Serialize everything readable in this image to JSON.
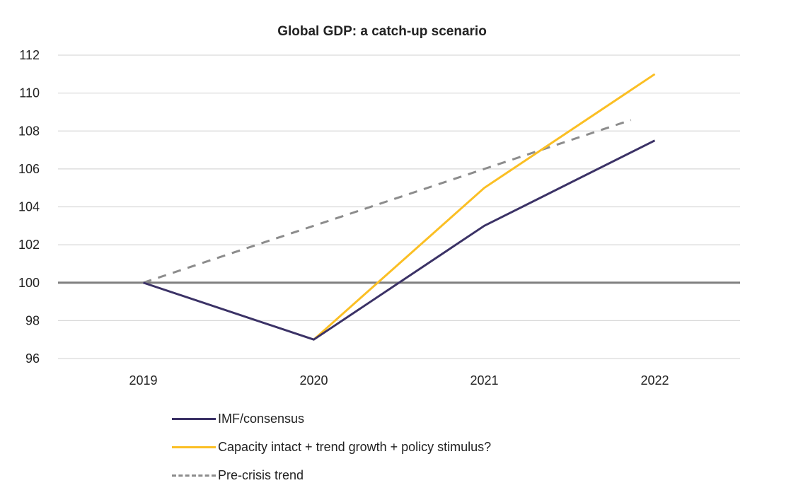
{
  "chart_data": {
    "type": "line",
    "title": "Global GDP: a catch-up scenario",
    "xlabel": "",
    "ylabel": "",
    "categories": [
      "2019",
      "2020",
      "2021",
      "2022"
    ],
    "ylim": [
      96,
      112
    ],
    "yticks": [
      96,
      98,
      100,
      102,
      104,
      106,
      108,
      110,
      112
    ],
    "ytick_labels": [
      "96",
      "98",
      "100",
      "102",
      "104",
      "106",
      "108",
      "110",
      "112"
    ],
    "grid": true,
    "baseline": 100,
    "legend_position": "bottom",
    "series": [
      {
        "name": "IMF/consensus",
        "color": "#3b3266",
        "style": "solid",
        "values": [
          100,
          97,
          103,
          107.5
        ]
      },
      {
        "name": "Capacity intact + trend growth + policy stimulus?",
        "color": "#fbbf24",
        "style": "solid",
        "values": [
          null,
          97,
          105,
          111
        ]
      },
      {
        "name": "Pre-crisis trend",
        "color": "#8c8c8c",
        "style": "dashed",
        "values": [
          100,
          103,
          106,
          109
        ]
      }
    ]
  }
}
